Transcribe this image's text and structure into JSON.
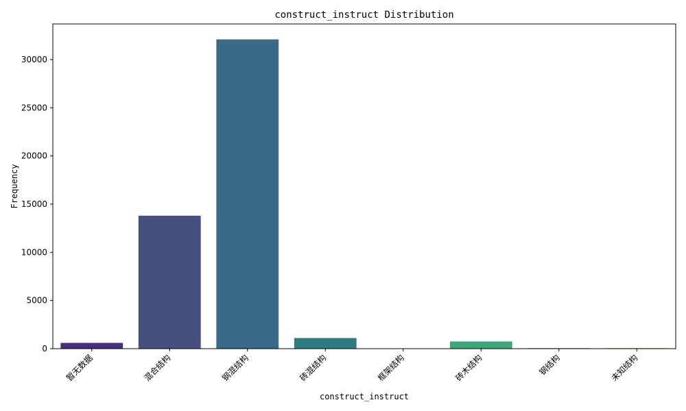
{
  "chart_data": {
    "type": "bar",
    "title": "construct_instruct Distribution",
    "xlabel": "construct_instruct",
    "ylabel": "Frequency",
    "categories": [
      "暂无数据",
      "混合结构",
      "钢混结构",
      "砖混结构",
      "框架结构",
      "砖木结构",
      "钢结构",
      "未知结构"
    ],
    "values": [
      600,
      13800,
      32100,
      1100,
      10,
      750,
      60,
      60
    ],
    "colors": [
      "#472f7d",
      "#46507f",
      "#3b6a87",
      "#2f7b83",
      "#27898a",
      "#3da77a",
      "#6dbe5a",
      "#bfd341"
    ],
    "ylim": [
      0,
      33700
    ],
    "yticks": [
      0,
      5000,
      10000,
      15000,
      20000,
      25000,
      30000
    ],
    "grid": false,
    "legend": "none"
  }
}
